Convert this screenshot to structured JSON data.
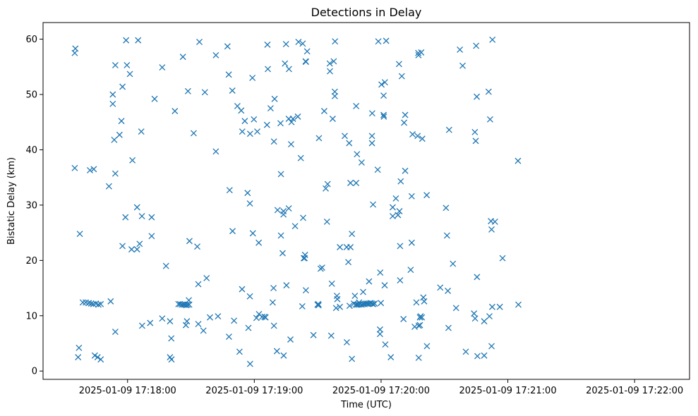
{
  "chart_data": {
    "type": "scatter",
    "title": "Detections in Delay",
    "xlabel": "Time (UTC)",
    "ylabel": "Bistatic Delay (km)",
    "x_tick_labels": [
      "2025-01-09 17:18:00",
      "2025-01-09 17:19:00",
      "2025-01-09 17:20:00",
      "2025-01-09 17:21:00",
      "2025-01-09 17:22:00"
    ],
    "x_ticks_seconds_after_1717": [
      60,
      120,
      180,
      240,
      300
    ],
    "y_ticks": [
      0,
      10,
      20,
      30,
      40,
      50,
      60
    ],
    "xlim_seconds_after_1717": [
      20,
      326
    ],
    "ylim": [
      -1.5,
      63
    ],
    "grid": false,
    "marker": "x",
    "color": "#1f77b4",
    "x_unit": "seconds after 2025-01-09 17:17:00",
    "points": [
      [
        35.0,
        57.5
      ],
      [
        35.3,
        58.3
      ],
      [
        37.0,
        4.2
      ],
      [
        36.6,
        2.5
      ],
      [
        37.4,
        24.8
      ],
      [
        35.0,
        36.7
      ],
      [
        38.8,
        12.4
      ],
      [
        40.2,
        12.4
      ],
      [
        41.6,
        12.3
      ],
      [
        42.8,
        12.2
      ],
      [
        43.8,
        12.1
      ],
      [
        45.0,
        12.2
      ],
      [
        46.2,
        12.0
      ],
      [
        47.3,
        12.1
      ],
      [
        44.5,
        2.8
      ],
      [
        45.8,
        2.5
      ],
      [
        47.3,
        2.1
      ],
      [
        42.2,
        36.3
      ],
      [
        44.0,
        36.5
      ],
      [
        51.2,
        33.4
      ],
      [
        52.0,
        12.6
      ],
      [
        53.0,
        50.0
      ],
      [
        53.0,
        48.3
      ],
      [
        53.7,
        41.8
      ],
      [
        54.2,
        55.3
      ],
      [
        54.2,
        35.7
      ],
      [
        54.2,
        7.1
      ],
      [
        56.2,
        42.7
      ],
      [
        57.1,
        45.2
      ],
      [
        57.6,
        51.4
      ],
      [
        57.6,
        22.6
      ],
      [
        59.3,
        59.8
      ],
      [
        59.0,
        27.8
      ],
      [
        59.7,
        55.3
      ],
      [
        61.1,
        53.7
      ],
      [
        61.9,
        22.0
      ],
      [
        62.3,
        38.1
      ],
      [
        64.5,
        29.6
      ],
      [
        64.5,
        22.0
      ],
      [
        65.0,
        59.8
      ],
      [
        65.7,
        23.0
      ],
      [
        66.5,
        43.3
      ],
      [
        66.8,
        28.0
      ],
      [
        66.9,
        8.2
      ],
      [
        70.7,
        8.7
      ],
      [
        71.4,
        27.8
      ],
      [
        71.4,
        24.4
      ],
      [
        72.8,
        49.2
      ],
      [
        76.4,
        54.9
      ],
      [
        76.4,
        9.5
      ],
      [
        78.2,
        19.0
      ],
      [
        80.1,
        9.0
      ],
      [
        80.1,
        2.5
      ],
      [
        80.7,
        5.9
      ],
      [
        80.8,
        2.1
      ],
      [
        82.4,
        47.0
      ],
      [
        84.1,
        12.1
      ],
      [
        84.9,
        12.1
      ],
      [
        85.7,
        12.0
      ],
      [
        86.5,
        12.0
      ],
      [
        87.2,
        12.0
      ],
      [
        87.8,
        11.9
      ],
      [
        88.4,
        12.0
      ],
      [
        89.2,
        12.0
      ],
      [
        86.2,
        56.8
      ],
      [
        87.6,
        8.3
      ],
      [
        88.1,
        9.0
      ],
      [
        88.6,
        50.6
      ],
      [
        89.3,
        23.5
      ],
      [
        89.0,
        12.8
      ],
      [
        91.3,
        43.0
      ],
      [
        93.0,
        22.5
      ],
      [
        93.5,
        8.5
      ],
      [
        93.5,
        15.7
      ],
      [
        94.0,
        59.5
      ],
      [
        95.9,
        7.3
      ],
      [
        96.6,
        50.4
      ],
      [
        97.4,
        16.8
      ],
      [
        99.0,
        9.7
      ],
      [
        101.8,
        39.7
      ],
      [
        101.8,
        57.1
      ],
      [
        102.8,
        9.9
      ],
      [
        107.3,
        58.7
      ],
      [
        107.9,
        53.6
      ],
      [
        108.0,
        6.2
      ],
      [
        108.3,
        32.7
      ],
      [
        109.6,
        50.7
      ],
      [
        109.7,
        25.3
      ],
      [
        110.4,
        9.1
      ],
      [
        112.0,
        47.9
      ],
      [
        113.0,
        3.5
      ],
      [
        113.8,
        47.1
      ],
      [
        114.3,
        43.3
      ],
      [
        114.2,
        14.8
      ],
      [
        115.5,
        45.2
      ],
      [
        116.8,
        32.2
      ],
      [
        117.2,
        7.8
      ],
      [
        117.9,
        30.3
      ],
      [
        117.9,
        13.5
      ],
      [
        118.0,
        42.9
      ],
      [
        119.1,
        53.0
      ],
      [
        118.0,
        1.3
      ],
      [
        119.3,
        24.9
      ],
      [
        119.8,
        45.5
      ],
      [
        121.4,
        43.3
      ],
      [
        121.0,
        9.6
      ],
      [
        122.1,
        23.2
      ],
      [
        122.2,
        10.3
      ],
      [
        123.7,
        9.8
      ],
      [
        124.8,
        9.8
      ],
      [
        125.3,
        9.7
      ],
      [
        126.0,
        44.5
      ],
      [
        126.4,
        54.6
      ],
      [
        126.2,
        59.0
      ],
      [
        127.7,
        47.5
      ],
      [
        128.7,
        12.4
      ],
      [
        129.1,
        15.0
      ],
      [
        129.3,
        41.5
      ],
      [
        129.3,
        8.2
      ],
      [
        129.6,
        49.2
      ],
      [
        130.7,
        3.6
      ],
      [
        131.0,
        29.1
      ],
      [
        132.4,
        44.8
      ],
      [
        132.6,
        35.6
      ],
      [
        132.6,
        24.5
      ],
      [
        133.4,
        21.3
      ],
      [
        133.8,
        28.9
      ],
      [
        133.8,
        28.3
      ],
      [
        133.9,
        2.8
      ],
      [
        134.5,
        55.6
      ],
      [
        135.0,
        59.1
      ],
      [
        135.2,
        15.5
      ],
      [
        136.4,
        54.6
      ],
      [
        136.3,
        29.4
      ],
      [
        136.3,
        45.6
      ],
      [
        137.1,
        5.7
      ],
      [
        137.4,
        41.0
      ],
      [
        137.6,
        45.0
      ],
      [
        138.3,
        45.6
      ],
      [
        139.3,
        26.2
      ],
      [
        140.6,
        46.0
      ],
      [
        140.9,
        59.5
      ],
      [
        142.0,
        38.5
      ],
      [
        142.7,
        11.7
      ],
      [
        142.9,
        59.2
      ],
      [
        143.1,
        27.7
      ],
      [
        143.4,
        20.4
      ],
      [
        143.8,
        20.4
      ],
      [
        144.0,
        21.0
      ],
      [
        144.4,
        14.6
      ],
      [
        144.3,
        56.0
      ],
      [
        144.4,
        55.9
      ],
      [
        145.0,
        57.8
      ],
      [
        148.0,
        6.5
      ],
      [
        149.9,
        12.0
      ],
      [
        150.3,
        12.1
      ],
      [
        150.4,
        11.9
      ],
      [
        150.6,
        42.1
      ],
      [
        151.4,
        18.5
      ],
      [
        152.1,
        18.7
      ],
      [
        153.1,
        47.0
      ],
      [
        153.8,
        33.0
      ],
      [
        154.4,
        27.0
      ],
      [
        154.7,
        33.8
      ],
      [
        155.7,
        55.6
      ],
      [
        155.8,
        54.2
      ],
      [
        156.4,
        6.4
      ],
      [
        156.7,
        15.8
      ],
      [
        157.1,
        45.6
      ],
      [
        157.6,
        56.0
      ],
      [
        158.1,
        49.7
      ],
      [
        158.2,
        59.6
      ],
      [
        158.1,
        50.5
      ],
      [
        158.7,
        11.4
      ],
      [
        159.1,
        13.6
      ],
      [
        159.3,
        13.0
      ],
      [
        160.5,
        11.6
      ],
      [
        160.5,
        22.4
      ],
      [
        162.8,
        42.5
      ],
      [
        163.7,
        22.4
      ],
      [
        163.8,
        5.2
      ],
      [
        164.5,
        19.7
      ],
      [
        164.9,
        41.2
      ],
      [
        165.1,
        11.8
      ],
      [
        165.5,
        22.4
      ],
      [
        165.5,
        34.0
      ],
      [
        166.2,
        24.8
      ],
      [
        166.2,
        2.2
      ],
      [
        167.1,
        12.2
      ],
      [
        167.6,
        13.6
      ],
      [
        168.0,
        12.0
      ],
      [
        168.7,
        12.0
      ],
      [
        169.4,
        12.0
      ],
      [
        170.1,
        12.1
      ],
      [
        170.8,
        12.0
      ],
      [
        171.5,
        12.1
      ],
      [
        172.2,
        12.1
      ],
      [
        172.9,
        12.2
      ],
      [
        173.6,
        12.2
      ],
      [
        174.3,
        12.2
      ],
      [
        175.0,
        12.3
      ],
      [
        175.7,
        12.2
      ],
      [
        176.3,
        12.1
      ],
      [
        177.0,
        12.2
      ],
      [
        168.2,
        34.0
      ],
      [
        168.2,
        47.9
      ],
      [
        168.6,
        39.2
      ],
      [
        169.6,
        12.4
      ],
      [
        170.8,
        37.7
      ],
      [
        171.5,
        14.3
      ],
      [
        174.3,
        16.2
      ],
      [
        175.8,
        46.6
      ],
      [
        175.7,
        42.5
      ],
      [
        175.7,
        41.2
      ],
      [
        176.2,
        30.1
      ],
      [
        178.4,
        36.4
      ],
      [
        178.7,
        59.6
      ],
      [
        179.5,
        7.5
      ],
      [
        179.5,
        6.7
      ],
      [
        179.6,
        17.8
      ],
      [
        179.9,
        12.3
      ],
      [
        180.2,
        51.8
      ],
      [
        181.2,
        46.3
      ],
      [
        181.3,
        46.0
      ],
      [
        181.2,
        49.8
      ],
      [
        181.7,
        15.5
      ],
      [
        181.8,
        52.2
      ],
      [
        182.0,
        4.8
      ],
      [
        182.4,
        59.7
      ],
      [
        184.6,
        2.5
      ],
      [
        185.5,
        29.6
      ],
      [
        185.5,
        28.0
      ],
      [
        187.0,
        31.2
      ],
      [
        188.0,
        28.2
      ],
      [
        188.5,
        55.5
      ],
      [
        188.7,
        28.9
      ],
      [
        189.0,
        22.6
      ],
      [
        189.0,
        16.4
      ],
      [
        189.3,
        34.3
      ],
      [
        189.8,
        53.3
      ],
      [
        190.6,
        9.4
      ],
      [
        190.9,
        44.9
      ],
      [
        191.4,
        46.3
      ],
      [
        191.4,
        36.2
      ],
      [
        194.0,
        18.3
      ],
      [
        194.5,
        31.6
      ],
      [
        194.5,
        23.2
      ],
      [
        194.9,
        42.8
      ],
      [
        195.9,
        8.0
      ],
      [
        196.7,
        12.4
      ],
      [
        197.3,
        42.5
      ],
      [
        197.6,
        57.5
      ],
      [
        197.7,
        57.1
      ],
      [
        197.8,
        8.2
      ],
      [
        197.8,
        2.4
      ],
      [
        198.4,
        9.7
      ],
      [
        198.4,
        8.3
      ],
      [
        198.7,
        9.9
      ],
      [
        199.0,
        57.6
      ],
      [
        199.3,
        9.7
      ],
      [
        199.5,
        42.0
      ],
      [
        200.0,
        13.3
      ],
      [
        200.4,
        12.6
      ],
      [
        201.6,
        31.8
      ],
      [
        201.7,
        4.5
      ],
      [
        208.0,
        15.1
      ],
      [
        210.7,
        29.5
      ],
      [
        211.2,
        24.5
      ],
      [
        211.6,
        14.5
      ],
      [
        211.9,
        7.8
      ],
      [
        212.2,
        43.6
      ],
      [
        214.0,
        19.4
      ],
      [
        215.5,
        11.4
      ],
      [
        217.3,
        58.1
      ],
      [
        218.6,
        55.2
      ],
      [
        220.1,
        3.5
      ],
      [
        224.0,
        10.4
      ],
      [
        224.4,
        43.2
      ],
      [
        224.5,
        9.5
      ],
      [
        224.8,
        41.6
      ],
      [
        225.0,
        58.8
      ],
      [
        225.3,
        49.6
      ],
      [
        225.4,
        17.0
      ],
      [
        225.6,
        2.7
      ],
      [
        228.8,
        9.0
      ],
      [
        228.8,
        2.8
      ],
      [
        230.9,
        50.5
      ],
      [
        231.3,
        9.9
      ],
      [
        231.6,
        45.5
      ],
      [
        232.0,
        27.1
      ],
      [
        232.3,
        25.6
      ],
      [
        232.3,
        4.5
      ],
      [
        232.6,
        11.6
      ],
      [
        232.7,
        59.9
      ],
      [
        233.9,
        27.0
      ],
      [
        236.2,
        11.6
      ],
      [
        237.5,
        20.4
      ],
      [
        245.0,
        12.0
      ],
      [
        244.8,
        38.0
      ]
    ]
  }
}
